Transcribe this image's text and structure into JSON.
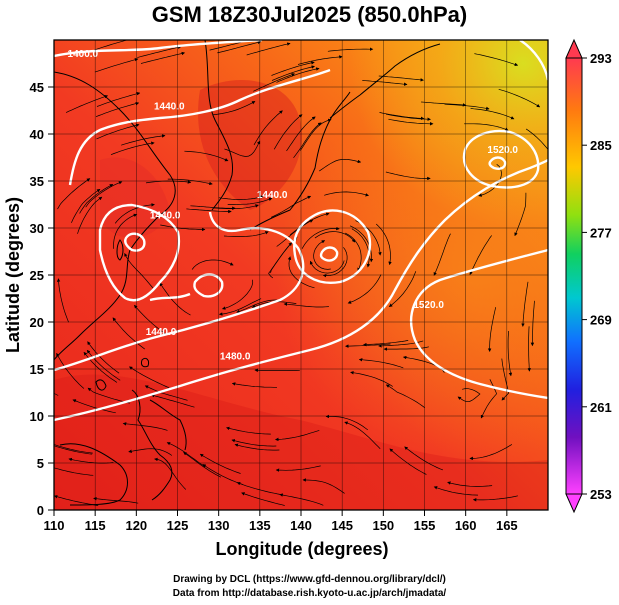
{
  "title": "GSM 18Z30Jul2025 (850.0hPa)",
  "credits": {
    "line1": "Drawing by DCL (https://www.gfd-dennou.org/library/dcl/)",
    "line2": "Data from http://database.rish.kyoto-u.ac.jp/arch/jmadata/"
  },
  "map": {
    "lon_range": [
      110,
      170
    ],
    "lat_range": [
      0,
      50
    ],
    "xlabel": "Longitude (degrees)",
    "ylabel": "Latitude  (degrees)",
    "lon_ticks": [
      "110",
      "115",
      "120",
      "125",
      "130",
      "135",
      "140",
      "145",
      "150",
      "155",
      "160",
      "165"
    ],
    "lat_ticks": [
      "0",
      "5",
      "10",
      "15",
      "20",
      "25",
      "30",
      "35",
      "40",
      "45"
    ],
    "contour_labels": [
      {
        "text": "1400.0",
        "lon": 113.5,
        "lat": 48.2
      },
      {
        "text": "1440.0",
        "lon": 124,
        "lat": 42.6
      },
      {
        "text": "1440.0",
        "lon": 123.5,
        "lat": 31.0
      },
      {
        "text": "1440.0",
        "lon": 136.5,
        "lat": 33.2
      },
      {
        "text": "1440.0",
        "lon": 123,
        "lat": 18.6
      },
      {
        "text": "1480.0",
        "lon": 132,
        "lat": 16.0
      },
      {
        "text": "1520.0",
        "lon": 155.5,
        "lat": 21.5
      },
      {
        "text": "1520.0",
        "lon": 164.5,
        "lat": 38.0
      }
    ]
  },
  "colorbar": {
    "labels": [
      "293",
      "285",
      "277",
      "269",
      "261",
      "253"
    ],
    "colors": [
      "#ff3a50",
      "#ff7a10",
      "#ffc800",
      "#80e010",
      "#10d060",
      "#00c0d0",
      "#1070ff",
      "#2020e0",
      "#6010c0",
      "#e020b0",
      "#ff40ff"
    ]
  }
}
